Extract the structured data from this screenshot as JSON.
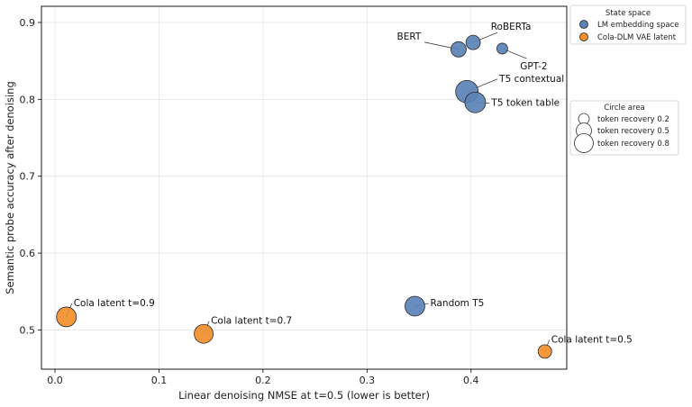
{
  "chart_data": {
    "type": "scatter",
    "xlabel": "Linear denoising NMSE at t=0.5 (lower is better)",
    "ylabel": "Semantic probe accuracy after denoising",
    "xlim": [
      -0.013,
      0.492
    ],
    "ylim": [
      0.449,
      0.921
    ],
    "x_ticks": [
      "0.0",
      "0.1",
      "0.2",
      "0.3",
      "0.4"
    ],
    "y_ticks": [
      "0.5",
      "0.6",
      "0.7",
      "0.8",
      "0.9"
    ],
    "grid": true,
    "series": [
      {
        "name": "LM embedding space",
        "color": "#5b82b5",
        "points": [
          {
            "label": "BERT",
            "x": 0.388,
            "y": 0.865,
            "token_recovery": 0.45
          },
          {
            "label": "RoBERTa",
            "x": 0.402,
            "y": 0.874,
            "token_recovery": 0.4
          },
          {
            "label": "GPT-2",
            "x": 0.43,
            "y": 0.866,
            "token_recovery": 0.2
          },
          {
            "label": "T5 contextual",
            "x": 0.396,
            "y": 0.81,
            "token_recovery": 0.85
          },
          {
            "label": "T5 token table",
            "x": 0.404,
            "y": 0.796,
            "token_recovery": 0.75
          },
          {
            "label": "Random T5",
            "x": 0.346,
            "y": 0.531,
            "token_recovery": 0.7
          }
        ]
      },
      {
        "name": "Cola-DLM VAE latent",
        "color": "#f28e2b",
        "points": [
          {
            "label": "Cola latent t=0.9",
            "x": 0.011,
            "y": 0.517,
            "token_recovery": 0.7
          },
          {
            "label": "Cola latent t=0.7",
            "x": 0.143,
            "y": 0.495,
            "token_recovery": 0.65
          },
          {
            "label": "Cola latent t=0.5",
            "x": 0.471,
            "y": 0.472,
            "token_recovery": 0.35
          }
        ]
      }
    ],
    "legend_state": {
      "title": "State space",
      "entries": [
        "LM embedding space",
        "Cola-DLM VAE latent"
      ],
      "placement": "outside top-right"
    },
    "legend_size": {
      "title": "Circle area",
      "entries": [
        {
          "label": "token recovery 0.2",
          "value": 0.2
        },
        {
          "label": "token recovery 0.5",
          "value": 0.5
        },
        {
          "label": "token recovery 0.8",
          "value": 0.8
        }
      ],
      "placement": "outside right"
    }
  }
}
